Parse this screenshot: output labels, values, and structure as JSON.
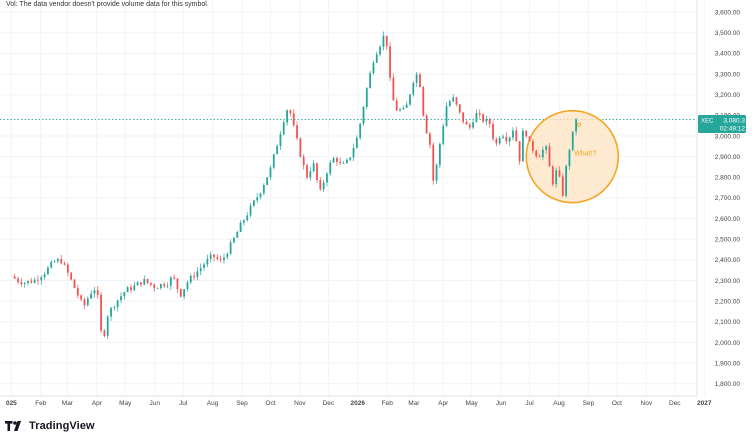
{
  "header": {
    "volume_note": "Vol: The data vendor doesn't provide volume data for this symbol."
  },
  "footer": {
    "brand": "TradingView"
  },
  "price_tag": {
    "symbol": "XEC",
    "price": "3,080.3",
    "countdown": "02:49:12",
    "color": "#26a69a"
  },
  "colors": {
    "up": "#26a69a",
    "down": "#ef5350",
    "annotation": "#f5a623",
    "annotation_fill": "#fde3c2"
  },
  "annotation": {
    "text": "What!?"
  },
  "chart_data": {
    "type": "candlestick",
    "y_ticks": [
      1800,
      1900,
      2000,
      2100,
      2200,
      2300,
      2400,
      2500,
      2600,
      2700,
      2800,
      2900,
      3000,
      3100,
      3200,
      3300,
      3400,
      3500,
      3600
    ],
    "y_tick_labels": [
      "1,800.00",
      "1,900.00",
      "2,000.00",
      "2,100.00",
      "2,200.00",
      "2,300.00",
      "2,400.00",
      "2,500.00",
      "2,600.00",
      "2,700.00",
      "2,800.00",
      "2,900.00",
      "3,000.00",
      "3,100.00",
      "3,200.00",
      "3,300.00",
      "3,400.00",
      "3,500.00",
      "3,600.00"
    ],
    "ylim": [
      1760,
      3620
    ],
    "x_ticks": [
      "2025-01",
      "2025-02",
      "2025-03",
      "2025-04",
      "2025-05",
      "2025-06",
      "2025-07",
      "2025-08",
      "2025-09",
      "2025-10",
      "2025-11",
      "2025-12",
      "2026-01",
      "2026-02",
      "2026-03",
      "2026-04",
      "2026-05",
      "2026-06",
      "2026-07",
      "2026-08",
      "2026-09",
      "2026-10",
      "2026-11",
      "2026-12",
      "2027-01"
    ],
    "x_tick_labels": [
      "025",
      "Feb",
      "Mar",
      "Apr",
      "May",
      "Jun",
      "Jul",
      "Aug",
      "Sep",
      "Oct",
      "Nov",
      "Dec",
      "2026",
      "Feb",
      "Mar",
      "Apr",
      "May",
      "Jun",
      "Jul",
      "Aug",
      "Sep",
      "Oct",
      "Nov",
      "Dec",
      "2027"
    ],
    "last_price": 3080.3,
    "path_points": [
      [
        "2025-01-01",
        2320
      ],
      [
        "2025-01-08",
        2300
      ],
      [
        "2025-01-15",
        2290
      ],
      [
        "2025-01-25",
        2300
      ],
      [
        "2025-02-05",
        2340
      ],
      [
        "2025-02-15",
        2390
      ],
      [
        "2025-02-22",
        2400
      ],
      [
        "2025-03-01",
        2340
      ],
      [
        "2025-03-10",
        2250
      ],
      [
        "2025-03-18",
        2170
      ],
      [
        "2025-03-25",
        2240
      ],
      [
        "2025-04-01",
        2270
      ],
      [
        "2025-04-04",
        2110
      ],
      [
        "2025-04-07",
        1990
      ],
      [
        "2025-04-12",
        2130
      ],
      [
        "2025-04-20",
        2190
      ],
      [
        "2025-05-01",
        2250
      ],
      [
        "2025-05-10",
        2270
      ],
      [
        "2025-05-20",
        2300
      ],
      [
        "2025-06-01",
        2270
      ],
      [
        "2025-06-15",
        2290
      ],
      [
        "2025-06-20",
        2320
      ],
      [
        "2025-06-28",
        2230
      ],
      [
        "2025-07-05",
        2290
      ],
      [
        "2025-07-15",
        2340
      ],
      [
        "2025-07-25",
        2390
      ],
      [
        "2025-08-01",
        2420
      ],
      [
        "2025-08-10",
        2390
      ],
      [
        "2025-08-20",
        2470
      ],
      [
        "2025-09-01",
        2580
      ],
      [
        "2025-09-10",
        2650
      ],
      [
        "2025-09-20",
        2730
      ],
      [
        "2025-10-01",
        2840
      ],
      [
        "2025-10-08",
        2960
      ],
      [
        "2025-10-15",
        3080
      ],
      [
        "2025-10-20",
        3150
      ],
      [
        "2025-10-25",
        3050
      ],
      [
        "2025-11-01",
        2920
      ],
      [
        "2025-11-08",
        2800
      ],
      [
        "2025-11-15",
        2870
      ],
      [
        "2025-11-22",
        2720
      ],
      [
        "2025-11-26",
        2780
      ],
      [
        "2025-12-01",
        2850
      ],
      [
        "2025-12-08",
        2900
      ],
      [
        "2025-12-15",
        2850
      ],
      [
        "2025-12-22",
        2880
      ],
      [
        "2026-01-01",
        3000
      ],
      [
        "2026-01-10",
        3220
      ],
      [
        "2026-01-18",
        3380
      ],
      [
        "2026-01-28",
        3480
      ],
      [
        "2026-02-01",
        3440
      ],
      [
        "2026-02-05",
        3210
      ],
      [
        "2026-02-10",
        3130
      ],
      [
        "2026-02-20",
        3120
      ],
      [
        "2026-03-01",
        3280
      ],
      [
        "2026-03-06",
        3310
      ],
      [
        "2026-03-12",
        3070
      ],
      [
        "2026-03-18",
        2960
      ],
      [
        "2026-03-22",
        2760
      ],
      [
        "2026-03-28",
        2950
      ],
      [
        "2026-04-05",
        3160
      ],
      [
        "2026-04-12",
        3180
      ],
      [
        "2026-04-20",
        3090
      ],
      [
        "2026-04-28",
        3030
      ],
      [
        "2026-05-05",
        3110
      ],
      [
        "2026-05-12",
        3080
      ],
      [
        "2026-05-20",
        3060
      ],
      [
        "2026-05-26",
        2950
      ],
      [
        "2026-06-01",
        3020
      ],
      [
        "2026-06-08",
        2980
      ],
      [
        "2026-06-15",
        3050
      ],
      [
        "2026-06-20",
        2870
      ],
      [
        "2026-06-25",
        3050
      ],
      [
        "2026-07-01",
        2960
      ],
      [
        "2026-07-10",
        2900
      ],
      [
        "2026-07-18",
        2950
      ],
      [
        "2026-07-25",
        2770
      ],
      [
        "2026-07-30",
        2840
      ],
      [
        "2026-08-05",
        2720
      ],
      [
        "2026-08-10",
        2900
      ],
      [
        "2026-08-15",
        3000
      ],
      [
        "2026-08-20",
        3080
      ]
    ],
    "annotation_circle": {
      "center": [
        "2026-08-15",
        2900
      ],
      "label": "What!?"
    },
    "annotation_dot": [
      "2026-08-22",
      3055
    ]
  }
}
